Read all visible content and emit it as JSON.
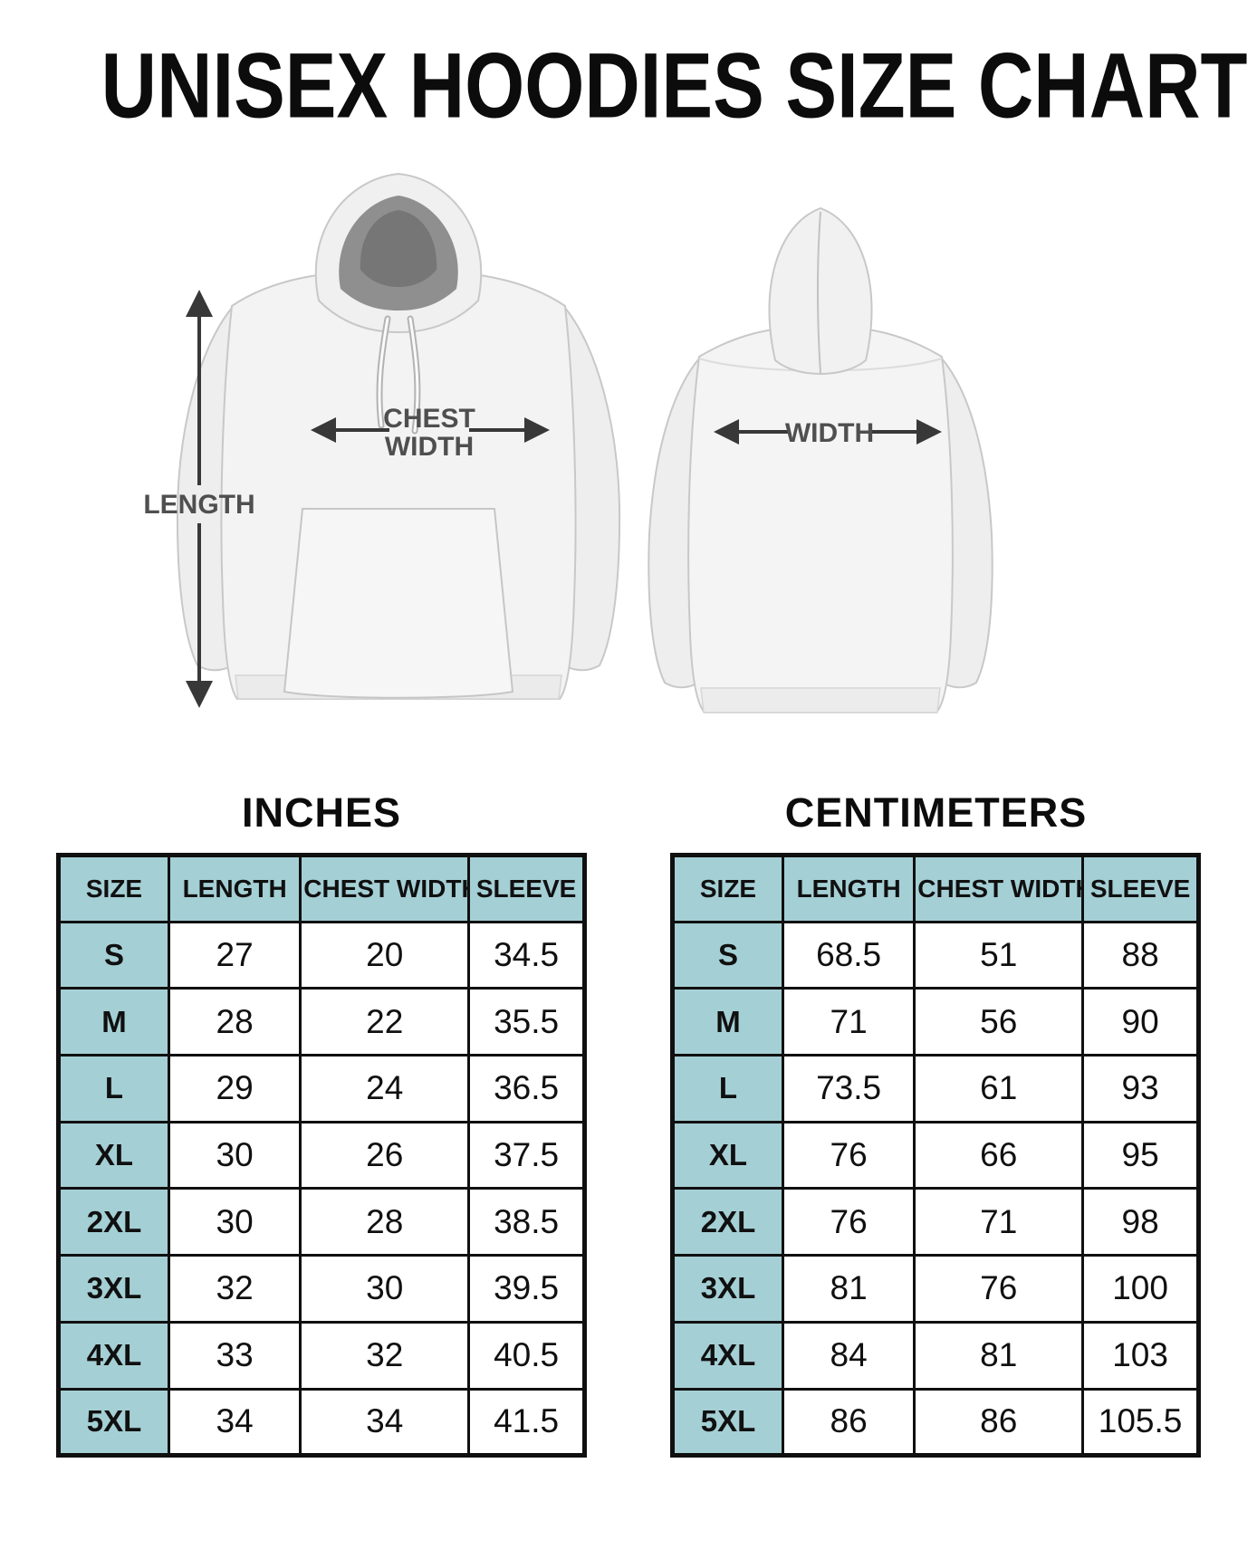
{
  "title": "UNISEX HOODIES SIZE CHART",
  "diagram": {
    "front": {
      "length_label": "LENGTH",
      "chest_width_label": [
        "CHEST",
        "WIDTH"
      ]
    },
    "back": {
      "width_label": "WIDTH"
    }
  },
  "tables": [
    {
      "unit_label": "INCHES",
      "columns": [
        "SIZE",
        "LENGTH",
        "CHEST WIDTH",
        "SLEEVE"
      ],
      "rows": [
        [
          "S",
          "27",
          "20",
          "34.5"
        ],
        [
          "M",
          "28",
          "22",
          "35.5"
        ],
        [
          "L",
          "29",
          "24",
          "36.5"
        ],
        [
          "XL",
          "30",
          "26",
          "37.5"
        ],
        [
          "2XL",
          "30",
          "28",
          "38.5"
        ],
        [
          "3XL",
          "32",
          "30",
          "39.5"
        ],
        [
          "4XL",
          "33",
          "32",
          "40.5"
        ],
        [
          "5XL",
          "34",
          "34",
          "41.5"
        ]
      ]
    },
    {
      "unit_label": "CENTIMETERS",
      "columns": [
        "SIZE",
        "LENGTH",
        "CHEST WIDTH",
        "SLEEVE"
      ],
      "rows": [
        [
          "S",
          "68.5",
          "51",
          "88"
        ],
        [
          "M",
          "71",
          "56",
          "90"
        ],
        [
          "L",
          "73.5",
          "61",
          "93"
        ],
        [
          "XL",
          "76",
          "66",
          "95"
        ],
        [
          "2XL",
          "76",
          "71",
          "98"
        ],
        [
          "3XL",
          "81",
          "76",
          "100"
        ],
        [
          "4XL",
          "84",
          "81",
          "103"
        ],
        [
          "5XL",
          "86",
          "86",
          "105.5"
        ]
      ]
    }
  ],
  "colors": {
    "header_fill": "#a4cfd5",
    "table_border": "#101010",
    "arrow": "#383838",
    "label_gray": "#4f4f4f"
  }
}
